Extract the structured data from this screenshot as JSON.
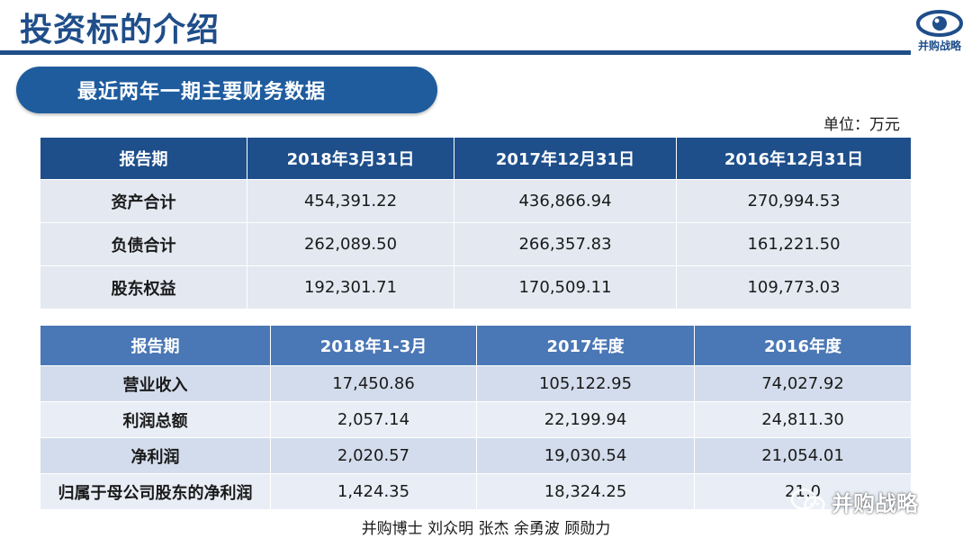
{
  "header": {
    "title": "投资标的介绍",
    "logo_text": "并购战略"
  },
  "subtitle": "最近两年一期主要财务数据",
  "unit": "单位：万元",
  "balance_table": {
    "headers": [
      "报告期",
      "2018年3月31日",
      "2017年12月31日",
      "2016年12月31日"
    ],
    "rows": [
      [
        "资产合计",
        "454,391.22",
        "436,866.94",
        "270,994.53"
      ],
      [
        "负债合计",
        "262,089.50",
        "266,357.83",
        "161,221.50"
      ],
      [
        "股东权益",
        "192,301.71",
        "170,509.11",
        "109,773.03"
      ]
    ]
  },
  "income_table": {
    "headers": [
      "报告期",
      "2018年1-3月",
      "2017年度",
      "2016年度"
    ],
    "rows": [
      [
        "营业收入",
        "17,450.86",
        "105,122.95",
        "74,027.92"
      ],
      [
        "利润总额",
        "2,057.14",
        "22,199.94",
        "24,811.30"
      ],
      [
        "净利润",
        "2,020.57",
        "19,030.54",
        "21,054.01"
      ],
      [
        "归属于母公司股东的净利润",
        "1,424.35",
        "18,324.25",
        "21,0"
      ]
    ]
  },
  "footer": "并购博士 刘众明 张杰 余勇波 顾勋力",
  "watermark": "并购战略",
  "colors": {
    "brand_blue": "#1f4e8a",
    "header_dark": "#1e4f8b",
    "header_light": "#4a77b5",
    "row_band_a": "#d3dcec",
    "row_band_b": "#e9eef6"
  }
}
